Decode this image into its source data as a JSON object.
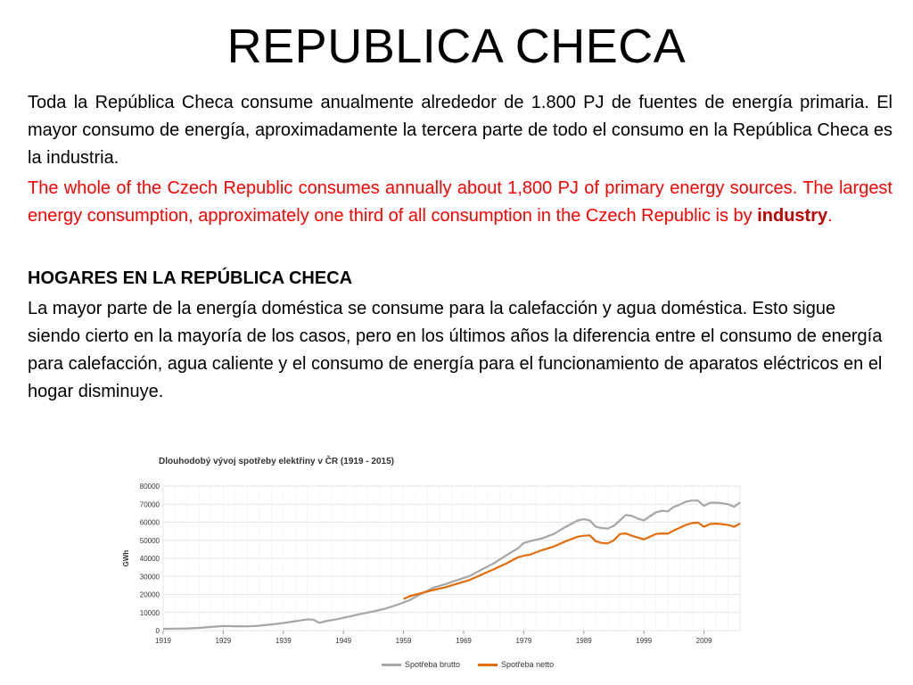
{
  "slide": {
    "title": "REPUBLICA CHECA",
    "p1": "Toda la República Checa consume anualmente alrededor de 1.800 PJ de fuentes de energía primaria. El mayor consumo de energía, aproximadamente la tercera parte de todo el consumo en la República Checa es la industria.",
    "p2_main": "The whole of the Czech Republic consumes annually about 1,800 PJ of primary energy sources. The largest energy consumption, approximately one third of all consumption in the Czech Republic is by ",
    "p2_bold": "industry",
    "p2_end": ".",
    "heading2": "HOGARES EN LA REPÚBLICA CHECA",
    "p3": "La mayor parte de la energía doméstica se consume para la calefacción y agua doméstica. Esto sigue siendo cierto en la mayoría de los casos, pero en los últimos años la diferencia entre el consumo de energía para calefacción, agua caliente y el consumo de energía para el funcionamiento de aparatos eléctricos en el hogar disminuye."
  },
  "chart_data": {
    "type": "line",
    "title": "Dlouhodobý vývoj spotřeby elektřiny v ČR (1919 - 2015)",
    "ylabel": "GWh",
    "xlabel": "",
    "ylim": [
      0,
      80000
    ],
    "xlim": [
      1919,
      2015
    ],
    "yticks": [
      0,
      10000,
      20000,
      30000,
      40000,
      50000,
      60000,
      70000,
      80000
    ],
    "xticks": [
      1919,
      1929,
      1939,
      1949,
      1959,
      1969,
      1979,
      1989,
      1999,
      2009
    ],
    "grid": true,
    "legend": "bottom",
    "colors": {
      "brutto": "#a6a6a6",
      "netto": "#e46c0a"
    },
    "series": [
      {
        "name": "Spotřeba brutto",
        "color": "#a6a6a6",
        "x": [
          1919,
          1921,
          1923,
          1925,
          1927,
          1929,
          1931,
          1933,
          1935,
          1937,
          1939,
          1941,
          1943,
          1944,
          1945,
          1946,
          1948,
          1950,
          1952,
          1954,
          1956,
          1958,
          1960,
          1962,
          1964,
          1966,
          1968,
          1970,
          1972,
          1974,
          1976,
          1978,
          1979,
          1980,
          1982,
          1984,
          1986,
          1988,
          1989,
          1990,
          1991,
          1992,
          1993,
          1994,
          1995,
          1996,
          1997,
          1998,
          1999,
          2000,
          2001,
          2002,
          2003,
          2004,
          2005,
          2006,
          2007,
          2008,
          2009,
          2010,
          2011,
          2012,
          2013,
          2014,
          2015
        ],
        "values": [
          1000,
          1100,
          1200,
          1500,
          2000,
          2500,
          2400,
          2300,
          2700,
          3400,
          4200,
          5200,
          6200,
          6000,
          4300,
          5200,
          6300,
          7800,
          9300,
          10600,
          12200,
          14300,
          16800,
          20500,
          23800,
          25800,
          28000,
          30200,
          33800,
          37200,
          41500,
          45500,
          48500,
          49500,
          51000,
          53500,
          57500,
          61000,
          61700,
          61000,
          57500,
          56800,
          56500,
          58000,
          61000,
          64000,
          63500,
          62000,
          61000,
          63300,
          65500,
          66300,
          66000,
          68500,
          69800,
          71400,
          72000,
          72000,
          69000,
          70800,
          70800,
          70500,
          70000,
          68500,
          71000
        ]
      },
      {
        "name": "Spotřeba netto",
        "color": "#e46c0a",
        "x": [
          1959,
          1960,
          1962,
          1964,
          1966,
          1968,
          1970,
          1972,
          1974,
          1976,
          1978,
          1979,
          1980,
          1982,
          1984,
          1986,
          1988,
          1989,
          1990,
          1991,
          1992,
          1993,
          1994,
          1995,
          1996,
          1997,
          1998,
          1999,
          2000,
          2001,
          2002,
          2003,
          2004,
          2005,
          2006,
          2007,
          2008,
          2009,
          2010,
          2011,
          2012,
          2013,
          2014,
          2015
        ],
        "values": [
          17500,
          19000,
          20800,
          22500,
          24000,
          26000,
          28000,
          31000,
          34000,
          37000,
          40500,
          41500,
          42000,
          44500,
          46500,
          49500,
          52000,
          52500,
          52700,
          49500,
          48500,
          48300,
          50000,
          53500,
          53800,
          52500,
          51500,
          50500,
          52000,
          53500,
          53800,
          53700,
          55500,
          57000,
          58500,
          59500,
          59800,
          57500,
          59000,
          59200,
          58900,
          58500,
          57500,
          59300
        ]
      }
    ]
  }
}
